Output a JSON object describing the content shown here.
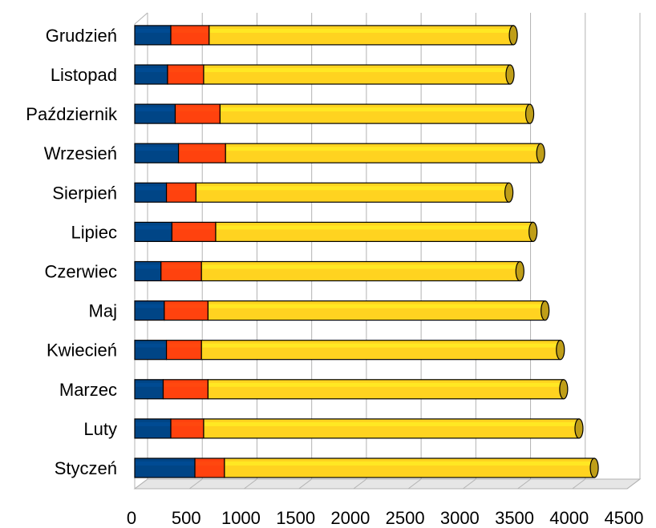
{
  "chart_data": {
    "type": "bar",
    "orientation": "horizontal",
    "stacked": true,
    "style": "3d-cylinder",
    "title": "",
    "xlabel": "",
    "ylabel": "",
    "categories": [
      "Styczeń",
      "Luty",
      "Marzec",
      "Kwiecień",
      "Maj",
      "Czerwiec",
      "Lipiec",
      "Sierpień",
      "Wrzesień",
      "Październik",
      "Listopad",
      "Grudzień"
    ],
    "series": [
      {
        "color": "#004586",
        "values": [
          550,
          330,
          260,
          290,
          270,
          240,
          340,
          290,
          400,
          370,
          300,
          330
        ]
      },
      {
        "color": "#ff420e",
        "values": [
          270,
          300,
          410,
          320,
          400,
          370,
          400,
          270,
          430,
          410,
          330,
          350
        ]
      },
      {
        "color": "#ffd320",
        "values": [
          3380,
          3430,
          3250,
          3280,
          3080,
          2910,
          2900,
          2860,
          2880,
          2830,
          2800,
          2780
        ]
      }
    ],
    "xlim": [
      0,
      4500
    ],
    "xticks": [
      "0",
      "500",
      "1000",
      "1500",
      "2000",
      "2500",
      "3000",
      "3500",
      "4000",
      "4500"
    ],
    "grid": true,
    "legend": "none"
  }
}
